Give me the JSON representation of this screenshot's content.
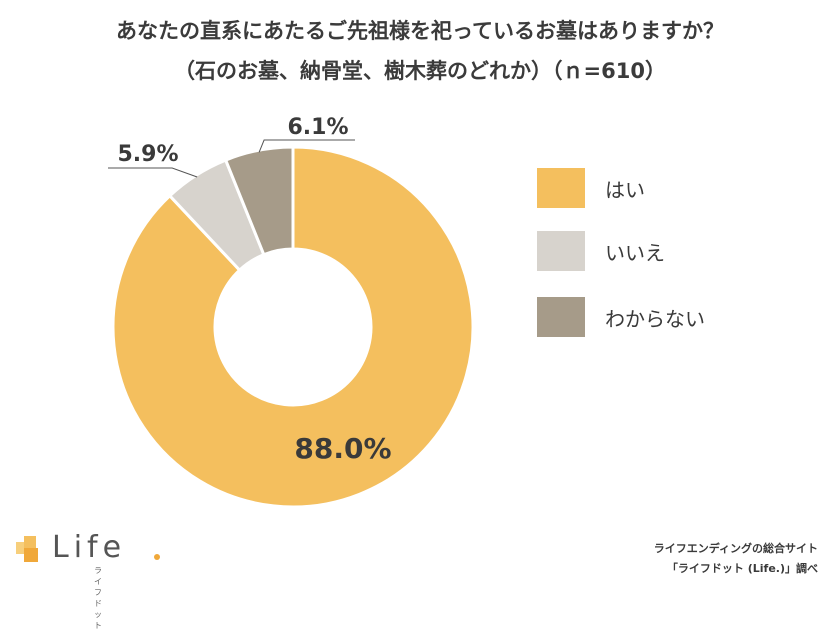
{
  "title_line1": "あなたの直系にあたるご先祖様を祀っているお墓はありますか？",
  "title_line2": "（石のお墓、納骨堂、樹木葬のどれか）（ｎ=610）",
  "chart_data": {
    "type": "pie",
    "donut": true,
    "categories": [
      "はい",
      "いいえ",
      "わからない"
    ],
    "values": [
      88.0,
      5.9,
      6.1
    ],
    "labels": [
      "88.0%",
      "5.9%",
      "6.1%"
    ],
    "colors": [
      "#f4bf5e",
      "#d7d3cd",
      "#a69b89"
    ],
    "legend_placement": "right"
  },
  "logo": {
    "text": "Life",
    "sub": "ライフドット"
  },
  "source_line1": "ライフエンディングの総合サイト",
  "source_line2": "「ライフドット (Life.)」調べ"
}
